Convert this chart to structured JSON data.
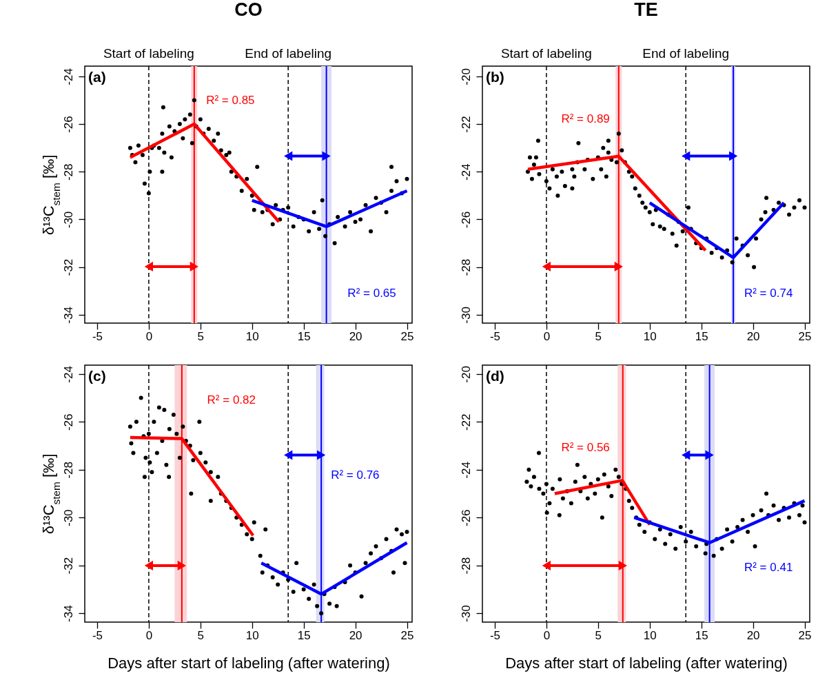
{
  "chart_data": [
    {
      "type": "scatter",
      "title": "CO",
      "ylabel": "δ¹³C$_{stem}$ [‰]",
      "xlim": [
        -6.2,
        25.5
      ],
      "ylim": [
        -34.35,
        -23.57
      ],
      "xticks": [
        -5,
        0,
        5,
        10,
        15,
        20,
        25
      ],
      "yticks": [
        -24,
        -26,
        -28,
        -30,
        -32,
        -34
      ],
      "series": [
        {
          "marker": "circle",
          "color": "#000000",
          "x": [
            -1.8,
            -1.6,
            -1.3,
            -1.0,
            -0.6,
            -0.4,
            0,
            0.1,
            0.3,
            0.5,
            1,
            1.3,
            1.4,
            1.3,
            1.5,
            2,
            2.2,
            2.5,
            3,
            3.3,
            3.5,
            4,
            4.2,
            4.4,
            4.6,
            5,
            5.3,
            5.8,
            6.3,
            6.7,
            7,
            7.5,
            7.8,
            8,
            8.5,
            9,
            9.5,
            10,
            10.2,
            10.5,
            11,
            11.5,
            12,
            12.3,
            12.7,
            13,
            13.5,
            14,
            14.5,
            15,
            15.5,
            16,
            16.5,
            16.8,
            17.1,
            17.5,
            18,
            18.3,
            19,
            19.5,
            20,
            20.5,
            21,
            21.5,
            22,
            22.5,
            23,
            23.5,
            23.5,
            24,
            24.5,
            25
          ],
          "values": [
            -27.0,
            -27.3,
            -27.6,
            -26.9,
            -27.3,
            -28.5,
            -28.9,
            -28.0,
            -27.0,
            -26.9,
            -27.0,
            -26.4,
            -25.3,
            -28.0,
            -27.2,
            -26.1,
            -27.4,
            -26.3,
            -26.0,
            -26.6,
            -25.8,
            -25.6,
            -26.8,
            -25.0,
            -26.1,
            -25.8,
            -26.4,
            -26.2,
            -26.7,
            -26.4,
            -27.1,
            -27.3,
            -27.2,
            -28.0,
            -28.2,
            -28.8,
            -28.3,
            -29.0,
            -29.6,
            -27.8,
            -29.7,
            -29.6,
            -30.2,
            -29.4,
            -30.0,
            -29.6,
            -29.5,
            -30.3,
            -29.9,
            -30.0,
            -30.5,
            -29.7,
            -30.4,
            -29.2,
            -30.7,
            -30.2,
            -31.0,
            -29.9,
            -30.3,
            -29.7,
            -30.1,
            -30.0,
            -29.4,
            -30.5,
            -29.1,
            -29.3,
            -29.7,
            -28.8,
            -27.8,
            -28.4,
            -28.9,
            -28.3
          ]
        },
        {
          "type": "line",
          "color": "#ff0000",
          "x": [
            -1.8,
            4.4,
            12.6
          ],
          "values": [
            -27.4,
            -26.0,
            -30.1
          ]
        },
        {
          "type": "line",
          "color": "#0000ff",
          "x": [
            10,
            17.2,
            25
          ],
          "values": [
            -29.2,
            -30.3,
            -28.8
          ]
        }
      ],
      "ref_lines": [
        {
          "axis": "x",
          "value": 0,
          "label": "Start of labeling",
          "color": "#000000",
          "line_style": "dashed"
        },
        {
          "axis": "x",
          "value": 13.5,
          "label": "End of labeling",
          "color": "#000000",
          "line_style": "dashed"
        },
        {
          "axis": "x",
          "value": 4.4,
          "color": "#ff0000",
          "line_style": "solid"
        },
        {
          "axis": "x",
          "value": 17.2,
          "color": "#0000ff",
          "line_style": "solid"
        }
      ],
      "bands": [
        {
          "axis": "x",
          "from": 4.1,
          "to": 4.7,
          "color": "#fbd3d6"
        },
        {
          "axis": "x",
          "from": 16.7,
          "to": 17.7,
          "color": "#dcdcf8"
        }
      ],
      "annotations": [
        "(a)",
        "R² = 0.85",
        "R² = 0.65"
      ]
    },
    {
      "type": "scatter",
      "title": "TE",
      "xlim": [
        -6.2,
        25.5
      ],
      "ylim": [
        -30.35,
        -19.57
      ],
      "xticks": [
        -5,
        0,
        5,
        10,
        15,
        20,
        25
      ],
      "yticks": [
        -20,
        -22,
        -24,
        -26,
        -28,
        -30
      ],
      "series": [
        {
          "marker": "circle",
          "color": "#000000",
          "x": [
            -1.8,
            -1.6,
            -1.4,
            -1.2,
            -1.0,
            -0.7,
            -0.8,
            0,
            0.3,
            0.6,
            1,
            1.1,
            1.5,
            1.8,
            2.5,
            2.7,
            3,
            2.5,
            3.1,
            3.7,
            4,
            4.5,
            5,
            5.3,
            5.5,
            5.8,
            6,
            6.3,
            6.0,
            6.8,
            7.0,
            7.3,
            7.6,
            8,
            8.3,
            8.6,
            9,
            9.3,
            9.6,
            10,
            10.3,
            10.6,
            11,
            11.4,
            12.6,
            11.8,
            12.2,
            12.8,
            13.2,
            13.75,
            14,
            14.5,
            15,
            15.5,
            16,
            16.5,
            17,
            17.5,
            18,
            18.4,
            19,
            19.5,
            20.1,
            20.3,
            20.8,
            21.2,
            21.3,
            22,
            22.5,
            23,
            23.5,
            24,
            24.5,
            25
          ],
          "values": [
            -24.0,
            -23.4,
            -24.3,
            -23.7,
            -23.4,
            -24.1,
            -22.7,
            -24.4,
            -24.7,
            -23.9,
            -24.2,
            -25.0,
            -24.0,
            -24.6,
            -23.9,
            -24.2,
            -23.6,
            -24.7,
            -22.8,
            -23.9,
            -23.5,
            -24.3,
            -23.4,
            -23.9,
            -23.0,
            -24.2,
            -23.2,
            -23.5,
            -22.7,
            -23.6,
            -22.4,
            -23.1,
            -23.6,
            -24.0,
            -24.2,
            -24.7,
            -25.0,
            -25.3,
            -25.5,
            -25.7,
            -26.2,
            -25.6,
            -26.3,
            -26.4,
            -27.1,
            -25.8,
            -26.6,
            -26.1,
            -26.5,
            -25.5,
            -26.4,
            -27.0,
            -27.2,
            -26.8,
            -27.4,
            -27.2,
            -27.6,
            -27.3,
            -27.8,
            -26.8,
            -27.1,
            -27.5,
            -28.0,
            -26.8,
            -26.0,
            -25.7,
            -25.1,
            -25.6,
            -25.3,
            -25.4,
            -25.8,
            -25.5,
            -25.2,
            -25.5
          ]
        },
        {
          "type": "line",
          "color": "#ff0000",
          "x": [
            -1.8,
            7.0,
            15.4
          ],
          "values": [
            -23.9,
            -23.35,
            -27.3
          ]
        },
        {
          "type": "line",
          "color": "#0000ff",
          "x": [
            10.0,
            18.1,
            23.0
          ],
          "values": [
            -25.3,
            -27.6,
            -25.3
          ]
        }
      ],
      "ref_lines": [
        {
          "axis": "x",
          "value": 0,
          "label": "Start of labeling",
          "color": "#000000",
          "line_style": "dashed"
        },
        {
          "axis": "x",
          "value": 13.5,
          "label": "End of labeling",
          "color": "#000000",
          "line_style": "dashed"
        },
        {
          "axis": "x",
          "value": 7.0,
          "color": "#ff0000",
          "line_style": "solid"
        },
        {
          "axis": "x",
          "value": 18.1,
          "color": "#0000ff",
          "line_style": "solid"
        }
      ],
      "bands": [
        {
          "axis": "x",
          "from": 6.7,
          "to": 7.3,
          "color": "#fbd3d6"
        },
        {
          "axis": "x",
          "from": 17.9,
          "to": 18.3,
          "color": "#dcdcf8"
        }
      ],
      "annotations": [
        "(b)",
        "R² = 0.89",
        "R² = 0.74"
      ]
    },
    {
      "type": "scatter",
      "xlabel": "Days after start of labeling (after watering)",
      "ylabel": "δ¹³C$_{stem}$ [‰]",
      "xlim": [
        -6.2,
        25.5
      ],
      "ylim": [
        -34.37,
        -23.63
      ],
      "xticks": [
        -5,
        0,
        5,
        10,
        15,
        20,
        25
      ],
      "yticks": [
        -24,
        -26,
        -28,
        -30,
        -32,
        -34
      ],
      "series": [
        {
          "marker": "circle",
          "color": "#000000",
          "x": [
            -1.8,
            -1.7,
            -1.5,
            -1.2,
            -0.75,
            -0.5,
            -0.3,
            -0.4,
            0,
            0.1,
            0.3,
            0.5,
            0.8,
            1,
            1.3,
            1.5,
            1.7,
            2,
            1.95,
            2.4,
            2.7,
            3,
            3.3,
            3.6,
            4,
            4.3,
            4.1,
            4.9,
            5,
            5.5,
            6,
            6.0,
            6.7,
            7,
            7.5,
            8,
            8.5,
            9,
            9.5,
            10,
            10.2,
            11.3,
            10.8,
            11,
            11.5,
            12,
            12.5,
            13,
            13.5,
            14,
            14.3,
            15,
            15.5,
            16,
            16.3,
            16.7,
            17,
            17.5,
            18,
            18.2,
            19,
            19.5,
            20,
            20.6,
            21,
            21.5,
            22,
            22.5,
            23,
            23.5,
            23.7,
            24,
            24.5,
            25,
            24.8
          ],
          "values": [
            -26.2,
            -26.9,
            -27.3,
            -26.0,
            -25.0,
            -26.6,
            -27.5,
            -28.3,
            -26.5,
            -27.7,
            -28.1,
            -26.0,
            -27.3,
            -25.4,
            -26.8,
            -25.5,
            -27.8,
            -26.3,
            -28.3,
            -25.7,
            -26.5,
            -27.5,
            -26.2,
            -26.8,
            -27.0,
            -27.6,
            -29.0,
            -26.0,
            -27.3,
            -27.7,
            -28.1,
            -29.3,
            -28.3,
            -29.0,
            -29.3,
            -29.6,
            -30.0,
            -30.3,
            -30.7,
            -30.9,
            -30.2,
            -30.5,
            -31.6,
            -32.3,
            -32.0,
            -32.5,
            -32.8,
            -32.3,
            -32.6,
            -33.1,
            -31.9,
            -33.0,
            -33.4,
            -32.8,
            -33.7,
            -34.0,
            -33.2,
            -33.6,
            -32.9,
            -33.7,
            -32.7,
            -32.0,
            -32.3,
            -33.3,
            -31.9,
            -31.5,
            -31.2,
            -31.7,
            -30.9,
            -31.4,
            -32.3,
            -30.5,
            -30.7,
            -30.6,
            -31.9
          ]
        },
        {
          "type": "line",
          "color": "#ff0000",
          "x": [
            -1.8,
            3.2,
            10.1
          ],
          "values": [
            -26.65,
            -26.7,
            -30.75
          ]
        },
        {
          "type": "line",
          "color": "#0000ff",
          "x": [
            10.9,
            16.7,
            25
          ],
          "values": [
            -31.9,
            -33.2,
            -31.05
          ]
        }
      ],
      "ref_lines": [
        {
          "axis": "x",
          "value": 0,
          "color": "#000000",
          "line_style": "dashed"
        },
        {
          "axis": "x",
          "value": 13.5,
          "color": "#000000",
          "line_style": "dashed"
        },
        {
          "axis": "x",
          "value": 3.2,
          "color": "#ff0000",
          "line_style": "solid"
        },
        {
          "axis": "x",
          "value": 16.7,
          "color": "#0000ff",
          "line_style": "solid"
        }
      ],
      "bands": [
        {
          "axis": "x",
          "from": 2.5,
          "to": 3.7,
          "color": "#fbd3d6"
        },
        {
          "axis": "x",
          "from": 16.2,
          "to": 17.0,
          "color": "#dcdcf8"
        }
      ],
      "annotations": [
        "(c)",
        "R² = 0.82",
        "R² = 0.76"
      ]
    },
    {
      "type": "scatter",
      "xlabel": "Days after start of labeling (after watering)",
      "xlim": [
        -6.2,
        25.5
      ],
      "ylim": [
        -30.37,
        -19.63
      ],
      "xticks": [
        -5,
        0,
        5,
        10,
        15,
        20,
        25
      ],
      "yticks": [
        -20,
        -22,
        -24,
        -26,
        -28,
        -30
      ],
      "series": [
        {
          "marker": "circle",
          "color": "#000000",
          "x": [
            -1.9,
            -1.7,
            -1.5,
            -1.2,
            -0.73,
            -0.7,
            -0.3,
            0,
            0.05,
            0.3,
            0.6,
            1.26,
            1.3,
            1.6,
            2,
            2.4,
            2.8,
            3,
            3.3,
            3.7,
            4,
            4.3,
            4.7,
            5,
            5.4,
            5.6,
            6,
            6.3,
            6.7,
            7,
            7.3,
            7.7,
            8,
            8.3,
            8.7,
            9,
            9.5,
            10,
            10.5,
            11,
            11.5,
            12,
            12.5,
            13,
            13.5,
            14,
            14.5,
            15.4,
            15.5,
            16.2,
            16.5,
            17,
            17.5,
            18,
            18.5,
            19,
            19.5,
            20,
            20.2,
            20.8,
            21.3,
            21.5,
            22,
            22.5,
            23,
            23.5,
            24,
            24.5,
            25,
            24.8
          ],
          "values": [
            -24.5,
            -24.0,
            -24.7,
            -24.3,
            -23.3,
            -24.8,
            -25.0,
            -24.6,
            -25.8,
            -25.4,
            -24.8,
            -25.9,
            -24.4,
            -25.2,
            -24.9,
            -25.4,
            -24.5,
            -23.8,
            -24.9,
            -24.3,
            -25.2,
            -24.6,
            -25.0,
            -24.4,
            -26.0,
            -24.2,
            -24.7,
            -25.1,
            -24.0,
            -24.3,
            -24.6,
            -24.8,
            -25.3,
            -25.6,
            -26.0,
            -26.3,
            -26.6,
            -26.2,
            -26.9,
            -26.5,
            -27.1,
            -26.7,
            -27.3,
            -26.4,
            -27.0,
            -26.6,
            -27.2,
            -27.5,
            -27.1,
            -27.6,
            -26.9,
            -27.3,
            -26.5,
            -27.0,
            -26.4,
            -26.1,
            -26.6,
            -25.9,
            -27.2,
            -25.7,
            -25.0,
            -25.9,
            -25.5,
            -26.1,
            -25.6,
            -26.0,
            -25.4,
            -25.9,
            -26.2,
            -25.5
          ]
        },
        {
          "type": "line",
          "color": "#ff0000",
          "x": [
            0.8,
            7.35,
            10.0
          ],
          "values": [
            -25.0,
            -24.45,
            -26.3
          ]
        },
        {
          "type": "line",
          "color": "#0000ff",
          "x": [
            8.5,
            15.8,
            25
          ],
          "values": [
            -26.0,
            -27.05,
            -25.3
          ]
        }
      ],
      "ref_lines": [
        {
          "axis": "x",
          "value": 0,
          "color": "#000000",
          "line_style": "dashed"
        },
        {
          "axis": "x",
          "value": 13.5,
          "color": "#000000",
          "line_style": "dashed"
        },
        {
          "axis": "x",
          "value": 7.4,
          "color": "#ff0000",
          "line_style": "solid"
        },
        {
          "axis": "x",
          "value": 15.8,
          "color": "#0000ff",
          "line_style": "solid"
        }
      ],
      "bands": [
        {
          "axis": "x",
          "from": 6.9,
          "to": 7.7,
          "color": "#fbd3d6"
        },
        {
          "axis": "x",
          "from": 15.3,
          "to": 16.3,
          "color": "#dcdcf8"
        }
      ],
      "annotations": [
        "(d)",
        "R² = 0.56",
        "R² = 0.41"
      ]
    }
  ]
}
